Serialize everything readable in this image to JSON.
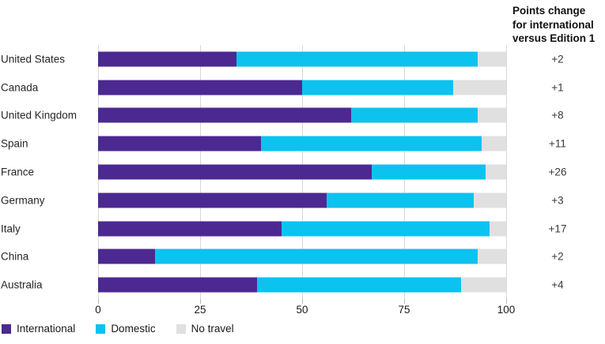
{
  "header": {
    "points_change_title": "Points change\nfor international\nversus Edition 1"
  },
  "legend": {
    "items": [
      {
        "label": "International",
        "color": "#4b2991"
      },
      {
        "label": "Domestic",
        "color": "#0cc2ee"
      },
      {
        "label": "No travel",
        "color": "#e0e0e0"
      }
    ]
  },
  "chart_data": {
    "type": "bar",
    "orientation": "horizontal",
    "stacked": true,
    "title": "",
    "xlabel": "",
    "ylabel": "",
    "xlim": [
      0,
      100
    ],
    "x_ticks": [
      "0",
      "25",
      "50",
      "75",
      "100"
    ],
    "grid": "vertical-only",
    "legend_position": "bottom-left",
    "categories": [
      "United States",
      "Canada",
      "United Kingdom",
      "Spain",
      "France",
      "Germany",
      "Italy",
      "China",
      "Australia"
    ],
    "series": [
      {
        "name": "International",
        "color": "#4b2991",
        "values": [
          34,
          50,
          62,
          40,
          67,
          56,
          45,
          14,
          39
        ]
      },
      {
        "name": "Domestic",
        "color": "#0cc2ee",
        "values": [
          59,
          37,
          31,
          54,
          28,
          36,
          51,
          79,
          50
        ]
      },
      {
        "name": "No travel",
        "color": "#e0e0e0",
        "values": [
          7,
          13,
          7,
          6,
          5,
          8,
          4,
          7,
          11
        ]
      }
    ],
    "annotation_column": {
      "title": "Points change for international versus Edition 1",
      "values_by_category": [
        "+2",
        "+1",
        "+8",
        "+11",
        "+26",
        "+3",
        "+17",
        "+2",
        "+4"
      ]
    }
  },
  "colors": {
    "gridline": "#d8d8d8",
    "tick": "#b8b8b8"
  }
}
